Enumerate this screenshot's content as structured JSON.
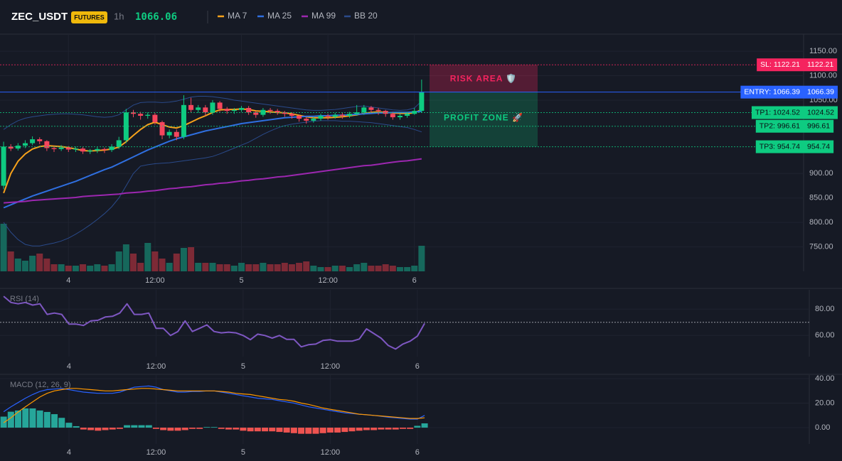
{
  "header": {
    "symbol": "ZEC_USDT",
    "badge": "FUTURES",
    "interval": "1h",
    "price": 1066.06
  },
  "chart_data": [
    {
      "type": "candlestick",
      "x": [
        -9,
        -8,
        -7,
        -6,
        -5,
        -4,
        -3,
        -2,
        -1,
        0,
        1,
        2,
        3,
        4,
        5,
        6,
        7,
        8,
        9,
        10,
        11,
        12,
        13,
        14,
        15,
        16,
        17,
        18,
        19,
        20,
        21,
        22,
        23,
        24,
        25,
        26,
        27,
        28,
        29,
        30,
        31,
        32,
        33,
        34,
        35,
        36,
        37,
        38,
        39,
        40,
        41,
        42,
        43,
        44,
        45,
        46,
        47,
        48,
        49
      ],
      "open": [
        875,
        955,
        951,
        957,
        962,
        970,
        966,
        952,
        950,
        953,
        949,
        951,
        945,
        947,
        950,
        948,
        955,
        968,
        1025,
        1022,
        1018,
        1020,
        1005,
        978,
        985,
        975,
        1040,
        1030,
        1035,
        1025,
        1045,
        1032,
        1028,
        1030,
        1034,
        1025,
        1020,
        1030,
        1028,
        1025,
        1022,
        1018,
        1012,
        1008,
        1012,
        1018,
        1016,
        1020,
        1018,
        1022,
        1025,
        1035,
        1030,
        1028,
        1022,
        1015,
        1018,
        1022,
        1028
      ],
      "high": [
        965,
        960,
        962,
        968,
        976,
        974,
        968,
        956,
        958,
        956,
        955,
        954,
        950,
        954,
        953,
        960,
        975,
        1032,
        1030,
        1026,
        1025,
        1024,
        1008,
        990,
        990,
        1060,
        1055,
        1040,
        1040,
        1050,
        1048,
        1036,
        1034,
        1038,
        1038,
        1028,
        1034,
        1034,
        1032,
        1028,
        1025,
        1020,
        1015,
        1016,
        1022,
        1022,
        1024,
        1024,
        1026,
        1040,
        1040,
        1038,
        1034,
        1030,
        1026,
        1022,
        1026,
        1034,
        1092
      ],
      "low": [
        868,
        946,
        947,
        952,
        958,
        960,
        946,
        944,
        946,
        944,
        944,
        940,
        940,
        942,
        942,
        944,
        950,
        962,
        1015,
        1010,
        1012,
        1000,
        970,
        972,
        968,
        970,
        1025,
        1024,
        1018,
        1020,
        1026,
        1022,
        1022,
        1026,
        1020,
        1014,
        1016,
        1022,
        1020,
        1016,
        1012,
        1006,
        1002,
        1004,
        1008,
        1010,
        1012,
        1012,
        1014,
        1018,
        1020,
        1024,
        1020,
        1016,
        1010,
        1010,
        1014,
        1020,
        1024
      ],
      "close": [
        955,
        951,
        957,
        962,
        970,
        966,
        952,
        950,
        953,
        949,
        951,
        945,
        947,
        950,
        948,
        955,
        968,
        1025,
        1022,
        1018,
        1020,
        1005,
        978,
        985,
        975,
        1040,
        1030,
        1035,
        1025,
        1045,
        1032,
        1028,
        1030,
        1034,
        1025,
        1020,
        1030,
        1028,
        1025,
        1022,
        1018,
        1012,
        1008,
        1012,
        1018,
        1016,
        1020,
        1018,
        1022,
        1025,
        1035,
        1030,
        1028,
        1022,
        1015,
        1018,
        1022,
        1028,
        1066
      ],
      "volume": [
        67,
        28,
        18,
        15,
        22,
        25,
        18,
        10,
        10,
        8,
        8,
        10,
        8,
        10,
        8,
        10,
        28,
        38,
        25,
        12,
        40,
        28,
        18,
        12,
        25,
        33,
        34,
        12,
        12,
        12,
        10,
        10,
        8,
        12,
        10,
        10,
        12,
        10,
        10,
        12,
        10,
        12,
        14,
        8,
        6,
        6,
        8,
        8,
        6,
        10,
        12,
        8,
        8,
        10,
        8,
        6,
        6,
        8,
        36
      ],
      "up_color": "#0ecb81",
      "down_color": "#f6465d",
      "volume_up_color": "#16685c",
      "volume_down_color": "#7d2a36",
      "series": [
        {
          "name": "MA 7",
          "color": "#f7a21b",
          "values": [
            860,
            900,
            925,
            940,
            950,
            955,
            957,
            956,
            955,
            953,
            950,
            947,
            946,
            947,
            948,
            950,
            954,
            965,
            978,
            990,
            1000,
            1005,
            1000,
            995,
            993,
            998,
            1005,
            1012,
            1018,
            1025,
            1030,
            1031,
            1031,
            1032,
            1031,
            1028,
            1027,
            1026,
            1025,
            1024,
            1022,
            1019,
            1016,
            1014,
            1014,
            1014,
            1015,
            1016,
            1018,
            1020,
            1023,
            1025,
            1026,
            1025,
            1024,
            1023,
            1023,
            1024,
            1031
          ]
        },
        {
          "name": "MA 25",
          "color": "#2f6fe0",
          "values": [
            830,
            836,
            842,
            848,
            854,
            859,
            864,
            869,
            874,
            879,
            884,
            890,
            896,
            902,
            908,
            913,
            920,
            927,
            934,
            941,
            948,
            954,
            960,
            966,
            971,
            975,
            979,
            983,
            987,
            990,
            993,
            996,
            999,
            1002,
            1004,
            1006,
            1008,
            1010,
            1012,
            1014,
            1015,
            1016,
            1017,
            1017,
            1018,
            1018,
            1019,
            1019,
            1020,
            1021,
            1022,
            1023,
            1024,
            1024,
            1025,
            1025,
            1025,
            1026,
            1027
          ]
        },
        {
          "name": "MA 99",
          "color": "#9c27b0",
          "values": [
            840,
            841,
            842,
            843,
            845,
            846,
            847,
            848,
            849,
            850,
            851,
            853,
            854,
            855,
            856,
            857,
            858,
            860,
            861,
            862,
            864,
            865,
            867,
            869,
            870,
            872,
            873,
            875,
            877,
            878,
            880,
            881,
            883,
            885,
            886,
            888,
            889,
            891,
            893,
            894,
            896,
            898,
            900,
            902,
            904,
            906,
            908,
            910,
            912,
            914,
            916,
            917,
            919,
            921,
            923,
            925,
            926,
            928,
            930
          ]
        },
        {
          "name": "BB 20",
          "color": "#2a4a8a",
          "upper": [
            990,
            1000,
            1008,
            1013,
            1016,
            1018,
            1020,
            1021,
            1022,
            1022,
            1021,
            1020,
            1018,
            1016,
            1015,
            1016,
            1020,
            1030,
            1040,
            1045,
            1046,
            1046,
            1045,
            1046,
            1048,
            1052,
            1056,
            1058,
            1058,
            1057,
            1055,
            1053,
            1050,
            1048,
            1046,
            1044,
            1042,
            1040,
            1038,
            1036,
            1034,
            1032,
            1030,
            1029,
            1029,
            1030,
            1031,
            1033,
            1035,
            1037,
            1038,
            1036,
            1034,
            1032,
            1030,
            1029,
            1030,
            1034,
            1048
          ],
          "lower": [
            800,
            780,
            765,
            755,
            752,
            752,
            755,
            758,
            762,
            768,
            776,
            785,
            795,
            806,
            818,
            832,
            850,
            875,
            900,
            915,
            918,
            920,
            921,
            922,
            924,
            926,
            928,
            930,
            932,
            935,
            940,
            946,
            952,
            958,
            964,
            972,
            980,
            987,
            993,
            998,
            1001,
            1003,
            1005,
            1007,
            1008,
            1008,
            1008,
            1007,
            1007,
            1006,
            1005,
            1004,
            1002,
            1000,
            998,
            996,
            994,
            990,
            985
          ]
        }
      ],
      "levels": [
        {
          "label": "SL: 1122.21",
          "value": 1122.21,
          "color": "#f5245f",
          "text_color": "#ffffff",
          "style": "dotted"
        },
        {
          "label": "ENTRY: 1066.39",
          "value": 1066.39,
          "color": "#2962ff",
          "text_color": "#ffffff",
          "style": "solid"
        },
        {
          "label": "TP1: 1024.52",
          "value": 1024.52,
          "color": "#0ecb81",
          "text_color": "#0b0e14",
          "style": "dotted"
        },
        {
          "label": "TP2: 996.61",
          "value": 996.61,
          "color": "#0ecb81",
          "text_color": "#0b0e14",
          "style": "dotted"
        },
        {
          "label": "TP3: 954.74",
          "value": 954.74,
          "color": "#0ecb81",
          "text_color": "#0b0e14",
          "style": "dotted"
        }
      ],
      "zones": [
        {
          "label": "RISK AREA 🛡️",
          "color": "#f5245f"
        },
        {
          "label": "PROFIT ZONE 🚀",
          "color": "#0ecb81"
        }
      ],
      "xlim": [
        -9.5,
        102
      ],
      "xticks": [
        {
          "value": 0,
          "label": "4"
        },
        {
          "value": 12,
          "label": "12:00"
        },
        {
          "value": 24,
          "label": "5"
        },
        {
          "value": 36,
          "label": "12:00"
        },
        {
          "value": 48,
          "label": "6"
        }
      ],
      "ylim": [
        700,
        1185
      ],
      "yticks": [
        {
          "value": 1150,
          "label": "1150.00"
        },
        {
          "value": 1100,
          "label": "1100.00"
        },
        {
          "value": 1050,
          "label": "1050.00"
        },
        {
          "value": 900,
          "label": "900.00"
        },
        {
          "value": 850,
          "label": "850.00"
        },
        {
          "value": 800,
          "label": "800.00"
        },
        {
          "value": 750,
          "label": "750.00"
        }
      ],
      "grid": true
    },
    {
      "type": "line",
      "title": "RSI (14)",
      "color": "#7e57c2",
      "x": [
        -9,
        -8,
        -7,
        -6,
        -5,
        -4,
        -3,
        -2,
        -1,
        0,
        1,
        2,
        3,
        4,
        5,
        6,
        7,
        8,
        9,
        10,
        11,
        12,
        13,
        14,
        15,
        16,
        17,
        18,
        19,
        20,
        21,
        22,
        23,
        24,
        25,
        26,
        27,
        28,
        29,
        30,
        31,
        32,
        33,
        34,
        35,
        36,
        37,
        38,
        39,
        40,
        41,
        42,
        43,
        44,
        45,
        46,
        47,
        48,
        49
      ],
      "values": [
        89.7,
        85,
        84,
        85,
        83,
        84,
        76,
        77,
        76,
        68.6,
        68.6,
        67.6,
        71,
        71.5,
        74,
        74.5,
        77,
        84,
        76,
        76,
        77,
        65.4,
        65.4,
        60,
        63,
        71,
        63,
        65.4,
        68,
        63,
        62,
        62.5,
        62,
        60,
        56.8,
        61,
        60,
        58,
        60,
        57,
        57,
        51.4,
        53,
        53.5,
        56.2,
        56.8,
        55.7,
        55.7,
        55.7,
        57.3,
        65,
        61.5,
        58,
        52.4,
        49.7,
        53.5,
        55.7,
        59.5,
        69.2
      ],
      "levels": [
        70
      ],
      "xlim": [
        -9.5,
        102
      ],
      "xticks": [
        {
          "value": 0,
          "label": "4"
        },
        {
          "value": 12,
          "label": "12:00"
        },
        {
          "value": 24,
          "label": "5"
        },
        {
          "value": 36,
          "label": "12:00"
        },
        {
          "value": 48,
          "label": "6"
        }
      ],
      "ylim": [
        44,
        94.6
      ],
      "yticks": [
        {
          "value": 80,
          "label": "80.00"
        },
        {
          "value": 60,
          "label": "60.00"
        }
      ],
      "grid": true
    },
    {
      "type": "combo",
      "title": "MACD (12, 26, 9)",
      "x": [
        -9,
        -8,
        -7,
        -6,
        -5,
        -4,
        -3,
        -2,
        -1,
        0,
        1,
        2,
        3,
        4,
        5,
        6,
        7,
        8,
        9,
        10,
        11,
        12,
        13,
        14,
        15,
        16,
        17,
        18,
        19,
        20,
        21,
        22,
        23,
        24,
        25,
        26,
        27,
        28,
        29,
        30,
        31,
        32,
        33,
        34,
        35,
        36,
        37,
        38,
        39,
        40,
        41,
        42,
        43,
        44,
        45,
        46,
        47,
        48,
        49
      ],
      "histogram": {
        "up_color": "#26a69a",
        "down_color": "#ef5350",
        "values": [
          9,
          13,
          14,
          15.7,
          15.7,
          14,
          12.8,
          11,
          8,
          4,
          1.2,
          -1.5,
          -2,
          -2.5,
          -2,
          -1.5,
          -1,
          2,
          2,
          2,
          2,
          -1,
          -2,
          -2.5,
          -2.5,
          -2,
          -1,
          -1,
          0.5,
          0.5,
          -1,
          -1.5,
          -1.5,
          -2.5,
          -3,
          -3,
          -3,
          -3,
          -3.5,
          -4,
          -4.5,
          -5,
          -5,
          -5,
          -4.5,
          -4,
          -4,
          -3.5,
          -3,
          -2.5,
          -2,
          -2,
          -1.5,
          -1.5,
          -1.5,
          -1,
          -1,
          1.5,
          3.5
        ]
      },
      "series": [
        {
          "color": "#2962ff",
          "values": [
            13,
            17,
            20.5,
            24,
            27,
            29.5,
            31,
            31.5,
            32,
            31,
            30,
            29,
            28.5,
            28,
            28,
            28,
            29,
            31,
            33,
            33.5,
            34,
            33,
            31,
            30,
            29,
            29,
            29.5,
            29.5,
            30,
            30,
            29,
            28,
            27,
            26,
            25,
            24,
            23.5,
            23,
            22,
            21,
            20,
            18.5,
            17,
            16,
            15,
            14,
            13,
            12,
            11.5,
            11,
            10.5,
            10,
            9.3,
            8.5,
            8,
            7.5,
            7,
            7,
            10
          ]
        },
        {
          "color": "#ff9800",
          "values": [
            4,
            8,
            12.8,
            17,
            21,
            25,
            28,
            30,
            31,
            32,
            32,
            31.5,
            31,
            30.5,
            30,
            30,
            30.5,
            31,
            31.5,
            32,
            32,
            31.5,
            31,
            30.5,
            30,
            30,
            30,
            30,
            30,
            30,
            29.5,
            29,
            28,
            27.5,
            27,
            26,
            25,
            24,
            23,
            22.5,
            21.5,
            20,
            19,
            17.5,
            16,
            15,
            14,
            13,
            12,
            11,
            10.5,
            10,
            9.5,
            9,
            8.5,
            8,
            7.5,
            7.5,
            8
          ]
        }
      ],
      "xlim": [
        -9.5,
        102
      ],
      "xticks": [
        {
          "value": 0,
          "label": "4"
        },
        {
          "value": 12,
          "label": "12:00"
        },
        {
          "value": 24,
          "label": "5"
        },
        {
          "value": 36,
          "label": "12:00"
        },
        {
          "value": 48,
          "label": "6"
        }
      ],
      "ylim": [
        -13.3,
        42.9
      ],
      "yticks": [
        {
          "value": 40,
          "label": "40.00"
        },
        {
          "value": 20,
          "label": "20.00"
        },
        {
          "value": 0,
          "label": "0.00"
        }
      ],
      "grid": true
    }
  ]
}
